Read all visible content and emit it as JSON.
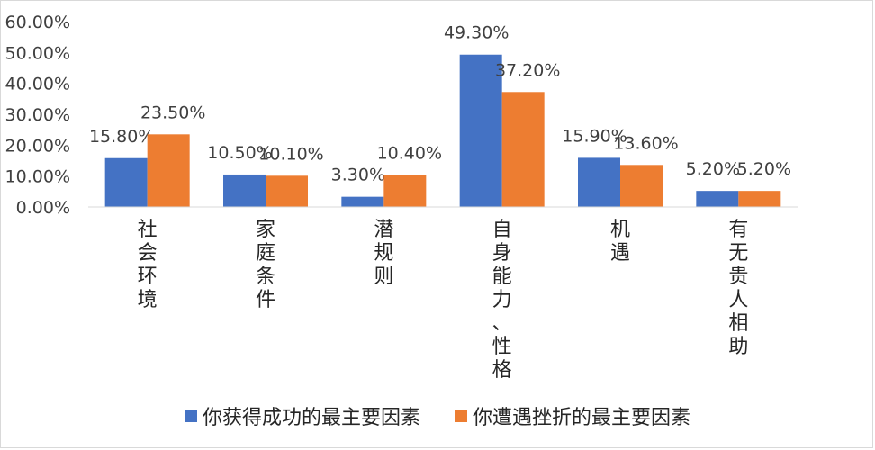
{
  "chart_data": {
    "type": "bar",
    "categories": [
      "社会环境",
      "家庭条件",
      "潜规则",
      "自身能力、性格",
      "机遇",
      "有无贵人相助"
    ],
    "series": [
      {
        "name": "你获得成功的最主要因素",
        "values": [
          15.8,
          10.5,
          3.3,
          49.3,
          15.9,
          5.2
        ],
        "color": "#4472C4"
      },
      {
        "name": "你遭遇挫折的最主要因素",
        "values": [
          23.5,
          10.1,
          10.4,
          37.2,
          13.6,
          5.2
        ],
        "color": "#ED7D31"
      }
    ],
    "value_labels": [
      [
        "15.80%",
        "10.50%",
        "3.30%",
        "49.30%",
        "15.90%",
        "5.20%"
      ],
      [
        "23.50%",
        "10.10%",
        "10.40%",
        "37.20%",
        "13.60%",
        "5.20%"
      ]
    ],
    "y_ticks": [
      "0.00%",
      "10.00%",
      "20.00%",
      "30.00%",
      "40.00%",
      "50.00%",
      "60.00%"
    ],
    "ylim": [
      0,
      60
    ],
    "title": "",
    "xlabel": "",
    "ylabel": "",
    "grid": false,
    "legend_position": "bottom"
  }
}
